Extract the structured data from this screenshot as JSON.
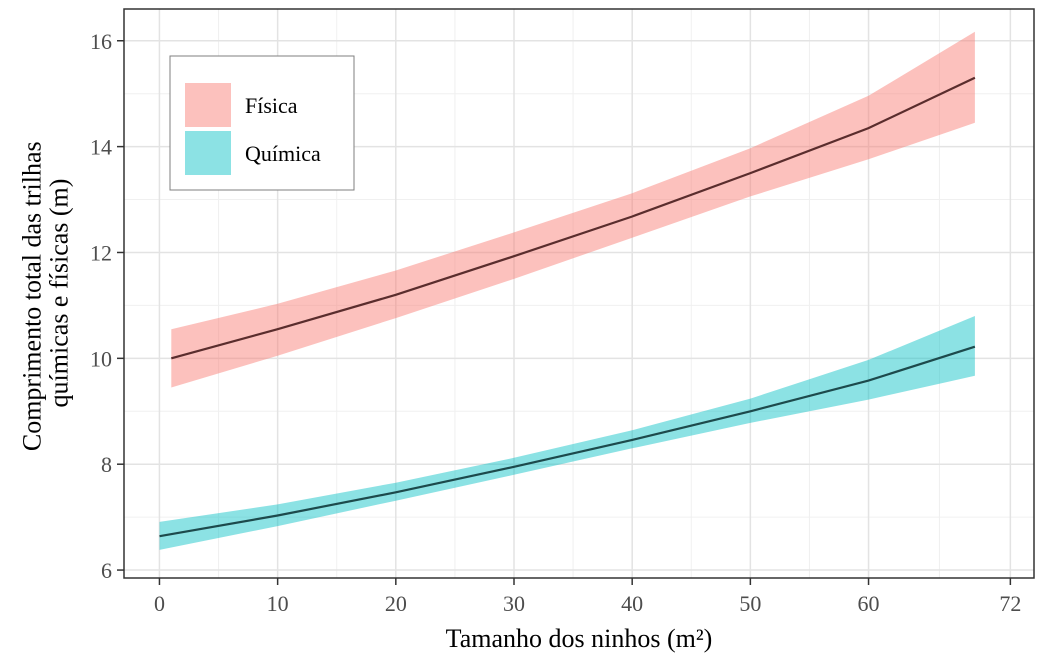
{
  "chart_data": {
    "type": "line",
    "xlabel": "Tamanho dos ninhos (m²)",
    "ylabel": [
      "Comprimento total das trilhas",
      "químicas e físicas (m)"
    ],
    "xlim": [
      -3,
      74
    ],
    "ylim": [
      5.85,
      16.6
    ],
    "xticks": [
      0,
      10,
      20,
      30,
      40,
      50,
      60,
      72
    ],
    "yticks": [
      6,
      8,
      10,
      12,
      14,
      16
    ],
    "grid": true,
    "legend_position": "top-left",
    "series": [
      {
        "name": "Física",
        "color": "#f8766d",
        "x": [
          1,
          10,
          20,
          30,
          40,
          50,
          60,
          69
        ],
        "y": [
          10.0,
          10.55,
          11.2,
          11.93,
          12.68,
          13.5,
          14.35,
          15.3
        ],
        "lower": [
          9.45,
          10.05,
          10.76,
          11.5,
          12.28,
          13.06,
          13.76,
          14.45
        ],
        "upper": [
          10.55,
          11.03,
          11.66,
          12.38,
          13.12,
          13.97,
          14.96,
          16.17
        ]
      },
      {
        "name": "Química",
        "color": "#00bfc4",
        "x": [
          0,
          10,
          20,
          30,
          40,
          50,
          60,
          69
        ],
        "y": [
          6.64,
          7.03,
          7.47,
          7.95,
          8.46,
          9.0,
          9.58,
          10.22
        ],
        "lower": [
          6.38,
          6.83,
          7.31,
          7.8,
          8.3,
          8.78,
          9.22,
          9.67
        ],
        "upper": [
          6.91,
          7.24,
          7.65,
          8.12,
          8.64,
          9.24,
          9.97,
          10.8
        ]
      }
    ]
  }
}
